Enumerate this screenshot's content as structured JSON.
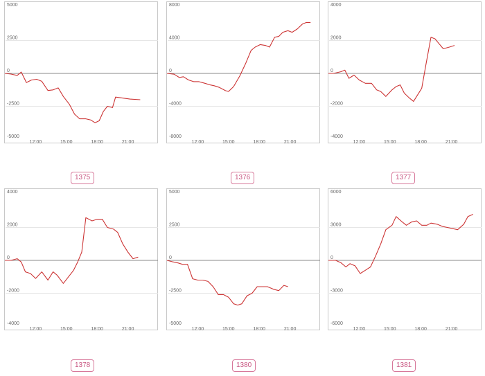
{
  "chart_data": [
    {
      "type": "line",
      "label": "1375",
      "ylim": [
        -5000,
        5000
      ],
      "yticks": [
        "5000",
        "2500",
        "0",
        "-2500",
        "-5000"
      ],
      "xlim": [
        9.0,
        24.0
      ],
      "xticks": [
        "12:00",
        "15:00",
        "18:00",
        "21:00"
      ],
      "grid": true,
      "series": [
        {
          "color": "#cc3333",
          "x": [
            9.0,
            9.6,
            10.2,
            10.6,
            11.1,
            11.6,
            12.1,
            12.6,
            13.2,
            13.7,
            14.2,
            14.7,
            15.3,
            15.8,
            16.3,
            16.9,
            17.4,
            17.8,
            18.2,
            18.6,
            19.0,
            19.5,
            19.8,
            20.3,
            21.2,
            22.2
          ],
          "y": [
            0,
            -50,
            -150,
            100,
            -700,
            -500,
            -450,
            -600,
            -1300,
            -1250,
            -1100,
            -1750,
            -2350,
            -3100,
            -3450,
            -3450,
            -3550,
            -3750,
            -3600,
            -2900,
            -2500,
            -2600,
            -1800,
            -1850,
            -1950,
            -2000
          ]
        }
      ]
    },
    {
      "type": "line",
      "label": "1376",
      "ylim": [
        -8000,
        8000
      ],
      "yticks": [
        "8000",
        "4000",
        "0",
        "-4000",
        "-8000"
      ],
      "xlim": [
        9.0,
        24.0
      ],
      "xticks": [
        "12:00",
        "15:00",
        "18:00",
        "21:00"
      ],
      "grid": true,
      "series": [
        {
          "color": "#cc3333",
          "x": [
            9.0,
            9.7,
            10.2,
            10.6,
            11.1,
            11.6,
            12.1,
            12.7,
            13.2,
            13.6,
            14.1,
            14.7,
            15.0,
            15.5,
            16.1,
            16.7,
            17.2,
            17.6,
            18.1,
            18.6,
            19.0,
            19.5,
            19.9,
            20.3,
            20.8,
            21.2,
            21.7,
            22.2,
            22.6,
            23.0
          ],
          "y": [
            0,
            -100,
            -500,
            -400,
            -800,
            -1000,
            -1000,
            -1200,
            -1400,
            -1500,
            -1700,
            -2100,
            -2200,
            -1600,
            -300,
            1300,
            2800,
            3200,
            3500,
            3400,
            3200,
            4400,
            4500,
            5000,
            5200,
            5000,
            5400,
            6000,
            6200,
            6200
          ]
        }
      ]
    },
    {
      "type": "line",
      "label": "1377",
      "ylim": [
        -4000,
        4000
      ],
      "yticks": [
        "4000",
        "2000",
        "0",
        "-2000",
        "-4000"
      ],
      "xlim": [
        9.0,
        24.0
      ],
      "xticks": [
        "12:00",
        "15:00",
        "18:00",
        "21:00"
      ],
      "grid": true,
      "series": [
        {
          "color": "#cc3333",
          "x": [
            9.0,
            9.5,
            10.2,
            10.6,
            11.0,
            11.5,
            12.0,
            12.6,
            13.2,
            13.7,
            14.1,
            14.6,
            15.2,
            15.6,
            16.0,
            16.4,
            16.9,
            17.3,
            17.6,
            18.1,
            18.5,
            19.0,
            19.4,
            19.8,
            20.2,
            20.8,
            21.3
          ],
          "y": [
            0,
            0,
            100,
            200,
            -300,
            -100,
            -400,
            -600,
            -600,
            -1000,
            -1100,
            -1400,
            -1000,
            -800,
            -700,
            -1200,
            -1500,
            -1700,
            -1400,
            -900,
            500,
            2200,
            2100,
            1800,
            1500,
            1600,
            1700
          ]
        }
      ]
    },
    {
      "type": "line",
      "label": "1378",
      "ylim": [
        -4000,
        4000
      ],
      "yticks": [
        "4000",
        "2000",
        "0",
        "-2000",
        "-4000"
      ],
      "xlim": [
        9.0,
        24.0
      ],
      "xticks": [
        "12:00",
        "15:00",
        "18:00",
        "21:00"
      ],
      "grid": true,
      "series": [
        {
          "color": "#cc3333",
          "x": [
            9.0,
            9.6,
            10.2,
            10.6,
            11.0,
            11.5,
            12.0,
            12.6,
            13.2,
            13.7,
            14.1,
            14.7,
            15.2,
            15.7,
            16.1,
            16.5,
            16.9,
            17.5,
            18.0,
            18.5,
            19.0,
            19.6,
            20.0,
            20.5,
            21.0,
            21.5,
            22.0
          ],
          "y": [
            0,
            0,
            100,
            -100,
            -700,
            -800,
            -1100,
            -700,
            -1200,
            -700,
            -900,
            -1400,
            -1000,
            -600,
            -100,
            500,
            2600,
            2400,
            2500,
            2500,
            2000,
            1900,
            1700,
            1000,
            500,
            100,
            200
          ]
        }
      ]
    },
    {
      "type": "line",
      "label": "1380",
      "ylim": [
        -5000,
        5000
      ],
      "yticks": [
        "5000",
        "2500",
        "0",
        "-2500",
        "-5000"
      ],
      "xlim": [
        9.0,
        24.0
      ],
      "xticks": [
        "12:00",
        "15:00",
        "18:00",
        "21:00"
      ],
      "grid": true,
      "series": [
        {
          "color": "#cc3333",
          "x": [
            9.0,
            9.5,
            10.1,
            10.5,
            11.0,
            11.5,
            12.0,
            12.5,
            13.0,
            13.5,
            14.0,
            14.5,
            15.0,
            15.5,
            15.9,
            16.3,
            16.8,
            17.3,
            17.8,
            18.3,
            18.8,
            19.4,
            19.9,
            20.4,
            20.8
          ],
          "y": [
            0,
            -100,
            -200,
            -300,
            -300,
            -1400,
            -1500,
            -1500,
            -1600,
            -2000,
            -2600,
            -2600,
            -2800,
            -3300,
            -3400,
            -3300,
            -2700,
            -2500,
            -2000,
            -2000,
            -2000,
            -2200,
            -2300,
            -1900,
            -2000
          ]
        }
      ]
    },
    {
      "type": "line",
      "label": "1381",
      "ylim": [
        -6000,
        6000
      ],
      "yticks": [
        "6000",
        "3000",
        "0",
        "-3000",
        "-6000"
      ],
      "xlim": [
        9.0,
        24.0
      ],
      "xticks": [
        "12:00",
        "15:00",
        "18:00",
        "21:00"
      ],
      "grid": true,
      "series": [
        {
          "color": "#cc3333",
          "x": [
            9.0,
            9.7,
            10.2,
            10.7,
            11.1,
            11.6,
            12.1,
            12.6,
            13.1,
            13.6,
            14.1,
            14.6,
            15.2,
            15.6,
            16.2,
            16.6,
            17.1,
            17.6,
            18.1,
            18.6,
            19.0,
            19.6,
            20.1,
            20.6,
            21.1,
            21.6,
            22.2,
            22.6,
            23.1
          ],
          "y": [
            0,
            0,
            -200,
            -600,
            -300,
            -500,
            -1200,
            -900,
            -600,
            400,
            1500,
            2800,
            3200,
            4000,
            3500,
            3200,
            3500,
            3600,
            3200,
            3200,
            3400,
            3300,
            3100,
            3000,
            2900,
            2800,
            3300,
            4000,
            4200
          ]
        }
      ]
    }
  ]
}
